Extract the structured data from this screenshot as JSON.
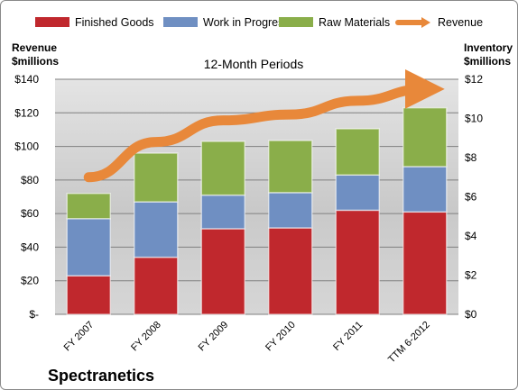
{
  "chart_data": {
    "type": "bar",
    "stacked": true,
    "title": "12-Month Periods",
    "company": "Spectranetics",
    "categories": [
      "FY 2007",
      "FY 2008",
      "FY 2009",
      "FY 2010",
      "FY 2011",
      "TTM 6-2012"
    ],
    "series": [
      {
        "name": "Finished Goods",
        "axis": "left",
        "color": "#c0282d",
        "values": [
          23,
          34,
          51,
          51.5,
          62,
          61
        ]
      },
      {
        "name": "Work in Progress",
        "axis": "left",
        "color": "#6f8fc2",
        "values": [
          34,
          33,
          20,
          21,
          21,
          27
        ]
      },
      {
        "name": "Raw Materials",
        "axis": "left",
        "color": "#8aae4a",
        "values": [
          15,
          29,
          32,
          31,
          27.5,
          35
        ]
      },
      {
        "name": "Revenue",
        "axis": "right",
        "type": "line",
        "color": "#e8883a",
        "values": [
          7.0,
          8.8,
          9.9,
          10.2,
          10.9,
          11.5
        ]
      }
    ],
    "ylabel_left": "Revenue\n$millions",
    "ylabel_right": "Inventory\n$millions",
    "ylim_left": [
      0,
      140
    ],
    "ylim_right": [
      0,
      12
    ],
    "yticks_left": [
      "$-",
      "$20",
      "$40",
      "$60",
      "$80",
      "$100",
      "$120",
      "$140"
    ],
    "yticks_right": [
      "$0",
      "$2",
      "$4",
      "$6",
      "$8",
      "$10",
      "$12"
    ],
    "legend_position": "top",
    "grid": true
  }
}
